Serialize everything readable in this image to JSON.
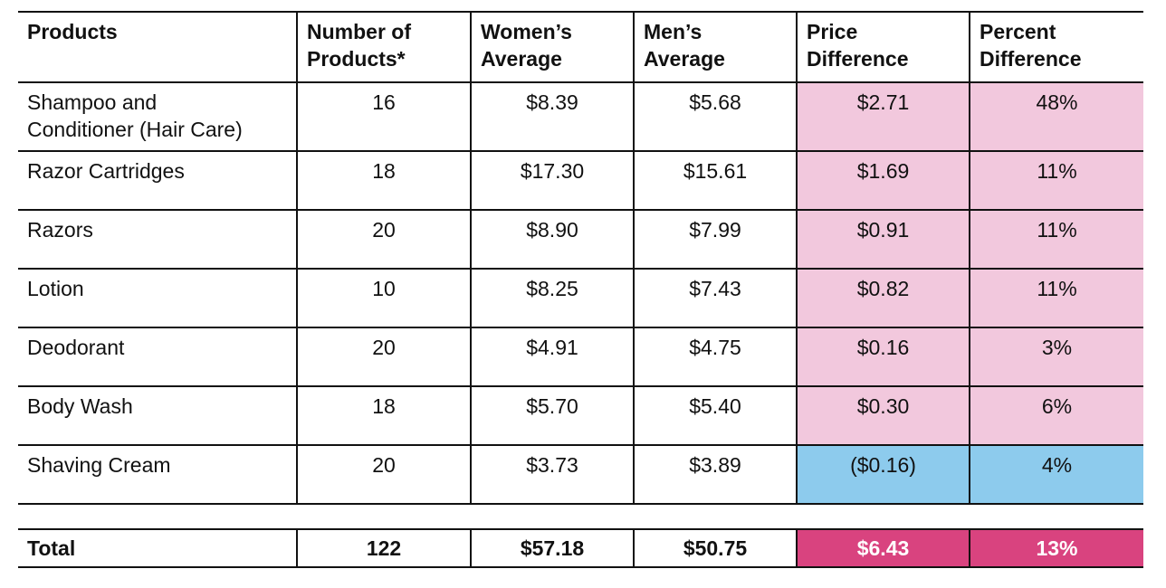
{
  "headers": {
    "products": "Products",
    "number_of_products": [
      "Number of",
      "Products*"
    ],
    "womens_average": [
      "Women’s",
      "Average"
    ],
    "mens_average": [
      "Men’s",
      "Average"
    ],
    "price_difference": [
      "Price",
      "Difference"
    ],
    "percent_difference": [
      "Percent",
      "Difference"
    ]
  },
  "rows": [
    {
      "product": [
        "Shampoo and",
        "Conditioner (Hair Care)"
      ],
      "count": "16",
      "women": "$8.39",
      "men": "$5.68",
      "price_diff": "$2.71",
      "percent_diff": "48%"
    },
    {
      "product": [
        "Razor Cartridges"
      ],
      "count": "18",
      "women": "$17.30",
      "men": "$15.61",
      "price_diff": "$1.69",
      "percent_diff": "11%"
    },
    {
      "product": [
        "Razors"
      ],
      "count": "20",
      "women": "$8.90",
      "men": "$7.99",
      "price_diff": "$0.91",
      "percent_diff": "11%"
    },
    {
      "product": [
        "Lotion"
      ],
      "count": "10",
      "women": "$8.25",
      "men": "$7.43",
      "price_diff": "$0.82",
      "percent_diff": "11%"
    },
    {
      "product": [
        "Deodorant"
      ],
      "count": "20",
      "women": "$4.91",
      "men": "$4.75",
      "price_diff": "$0.16",
      "percent_diff": "3%"
    },
    {
      "product": [
        "Body Wash"
      ],
      "count": "18",
      "women": "$5.70",
      "men": "$5.40",
      "price_diff": "$0.30",
      "percent_diff": "6%"
    },
    {
      "product": [
        "Shaving Cream"
      ],
      "count": "20",
      "women": "$3.73",
      "men": "$3.89",
      "price_diff": "($0.16)",
      "percent_diff": "4%"
    }
  ],
  "total": {
    "label": "Total",
    "count": "122",
    "women": "$57.18",
    "men": "$50.75",
    "price_diff": "$6.43",
    "percent_diff": "13%"
  },
  "colors": {
    "women_higher": "#f2c8dd",
    "men_higher": "#8dcbed",
    "total_highlight": "#d9437f"
  }
}
